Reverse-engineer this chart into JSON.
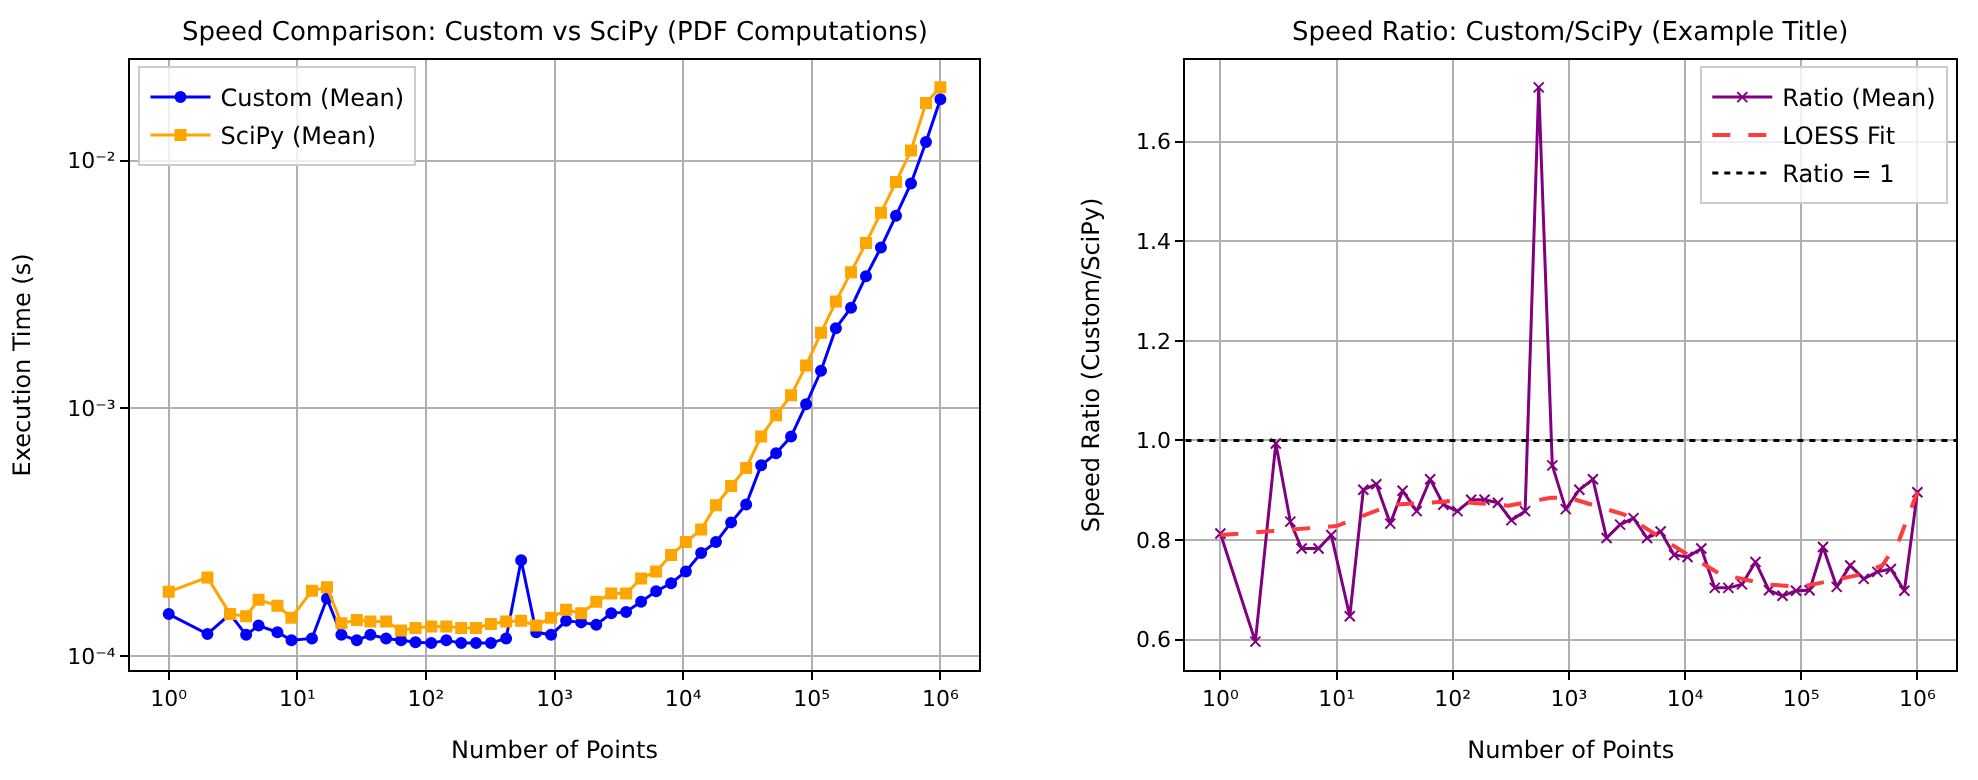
{
  "chart_data": [
    {
      "type": "line",
      "title": "Speed Comparison: Custom vs SciPy (PDF Computations)",
      "xlabel": "Number of Points",
      "ylabel": "Execution Time (s)",
      "log": "xy",
      "grid": true,
      "legend": "top left",
      "xlim": [
        0.5,
        2000000
      ],
      "ylim": [
        8.8e-05,
        0.0255
      ],
      "xticks": [
        {
          "value": 1,
          "label": "10⁰"
        },
        {
          "value": 10,
          "label": "10¹"
        },
        {
          "value": 100,
          "label": "10²"
        },
        {
          "value": 1000,
          "label": "10³"
        },
        {
          "value": 10000,
          "label": "10⁴"
        },
        {
          "value": 100000,
          "label": "10⁵"
        },
        {
          "value": 1000000,
          "label": "10⁶"
        }
      ],
      "yticks": [
        {
          "value": 0.0001,
          "label": "10⁻⁴"
        },
        {
          "value": 0.001,
          "label": "10⁻³"
        },
        {
          "value": 0.01,
          "label": "10⁻²"
        }
      ],
      "x": [
        1,
        2,
        3,
        4,
        5,
        7,
        9,
        13,
        17,
        22,
        29,
        37,
        49,
        64,
        83,
        110,
        144,
        188,
        245,
        320,
        420,
        550,
        720,
        940,
        1230,
        1610,
        2110,
        2760,
        3600,
        4710,
        6160,
        8060,
        10500,
        13800,
        18000,
        23600,
        30900,
        40400,
        52800,
        69000,
        90300,
        118000,
        154000,
        202000,
        264000,
        345000,
        452000,
        591000,
        773000,
        1000000
      ],
      "series": [
        {
          "name": "Custom (Mean)",
          "color": "#0000ff",
          "marker": "circle",
          "values": [
            0.000148,
            0.000123,
            0.000148,
            0.000122,
            0.000133,
            0.000125,
            0.000116,
            0.000118,
            0.000171,
            0.000122,
            0.000116,
            0.000122,
            0.000118,
            0.000116,
            0.000114,
            0.000113,
            0.000116,
            0.000113,
            0.000113,
            0.000113,
            0.000118,
            0.000244,
            0.000125,
            0.000122,
            0.000139,
            0.000137,
            0.000134,
            0.000149,
            0.000151,
            0.000166,
            0.000183,
            0.000197,
            0.00022,
            0.000261,
            0.000289,
            0.000347,
            0.00041,
            0.00059,
            0.00066,
            0.00077,
            0.00104,
            0.00142,
            0.00211,
            0.00255,
            0.00342,
            0.00446,
            0.006,
            0.0081,
            0.0119,
            0.0177
          ]
        },
        {
          "name": "SciPy (Mean)",
          "color": "#ffa500",
          "marker": "square",
          "values": [
            0.000182,
            0.000208,
            0.000148,
            0.000145,
            0.000169,
            0.00016,
            0.000143,
            0.000184,
            0.00019,
            0.000136,
            0.00014,
            0.000138,
            0.000138,
            0.000127,
            0.00013,
            0.000132,
            0.000132,
            0.00013,
            0.00013,
            0.000135,
            0.000138,
            0.000139,
            0.000133,
            0.000143,
            0.000154,
            0.000149,
            0.000166,
            0.000179,
            0.000179,
            0.000206,
            0.00022,
            0.000256,
            0.000289,
            0.000325,
            0.000407,
            0.000486,
            0.000575,
            0.00077,
            0.00094,
            0.00113,
            0.00149,
            0.00202,
            0.0027,
            0.00355,
            0.00465,
            0.00617,
            0.0082,
            0.011,
            0.0171,
            0.0198
          ]
        }
      ]
    },
    {
      "type": "line",
      "title": "Speed Ratio: Custom/SciPy (Example Title)",
      "xlabel": "Number of Points",
      "ylabel": "Speed Ratio (Custom/SciPy)",
      "log": "x",
      "grid": true,
      "legend": "top right",
      "xlim": [
        0.5,
        2150000
      ],
      "ylim": [
        0.539,
        1.764
      ],
      "xticks": [
        {
          "value": 1,
          "label": "10⁰"
        },
        {
          "value": 10,
          "label": "10¹"
        },
        {
          "value": 100,
          "label": "10²"
        },
        {
          "value": 1000,
          "label": "10³"
        },
        {
          "value": 10000,
          "label": "10⁴"
        },
        {
          "value": 100000,
          "label": "10⁵"
        },
        {
          "value": 1000000,
          "label": "10⁶"
        }
      ],
      "yticks": [
        {
          "value": 0.6,
          "label": "0.6"
        },
        {
          "value": 0.8,
          "label": "0.8"
        },
        {
          "value": 1.0,
          "label": "1.0"
        },
        {
          "value": 1.2,
          "label": "1.2"
        },
        {
          "value": 1.4,
          "label": "1.4"
        },
        {
          "value": 1.6,
          "label": "1.6"
        }
      ],
      "x": [
        1,
        2,
        3,
        4,
        5,
        7,
        9,
        13,
        17,
        22,
        29,
        37,
        49,
        64,
        83,
        110,
        144,
        188,
        245,
        320,
        420,
        550,
        720,
        940,
        1230,
        1610,
        2110,
        2760,
        3600,
        4710,
        6160,
        8060,
        10500,
        13800,
        18000,
        23600,
        30900,
        40400,
        52800,
        69000,
        90300,
        118000,
        154000,
        202000,
        264000,
        345000,
        452000,
        591000,
        773000,
        1000000
      ],
      "series": [
        {
          "name": "Ratio (Mean)",
          "color": "#800080",
          "marker": "cross",
          "line_style": "solid",
          "values": [
            0.813,
            0.596,
            0.994,
            0.837,
            0.783,
            0.783,
            0.81,
            0.647,
            0.901,
            0.912,
            0.833,
            0.899,
            0.858,
            0.922,
            0.871,
            0.858,
            0.881,
            0.881,
            0.875,
            0.84,
            0.858,
            1.709,
            0.95,
            0.862,
            0.901,
            0.922,
            0.804,
            0.831,
            0.844,
            0.804,
            0.817,
            0.77,
            0.766,
            0.783,
            0.704,
            0.704,
            0.711,
            0.756,
            0.699,
            0.688,
            0.698,
            0.699,
            0.786,
            0.706,
            0.749,
            0.722,
            0.736,
            0.742,
            0.698,
            0.896
          ]
        },
        {
          "name": "LOESS Fit",
          "color": "#ff3b3b",
          "marker": "none",
          "line_style": "dashed",
          "x": [
            1,
            10,
            30,
            100,
            300,
            700,
            1000,
            3000,
            10000,
            20000,
            50000,
            100000,
            300000,
            500000,
            700000,
            1000000
          ],
          "values": [
            0.81,
            0.828,
            0.871,
            0.878,
            0.869,
            0.885,
            0.885,
            0.851,
            0.774,
            0.732,
            0.711,
            0.706,
            0.729,
            0.749,
            0.801,
            0.896
          ]
        }
      ],
      "ref_lines": [
        {
          "axis": "y",
          "value": 1.0,
          "label": "Ratio = 1",
          "color": "#000000",
          "line_style": "dotted"
        }
      ]
    }
  ]
}
